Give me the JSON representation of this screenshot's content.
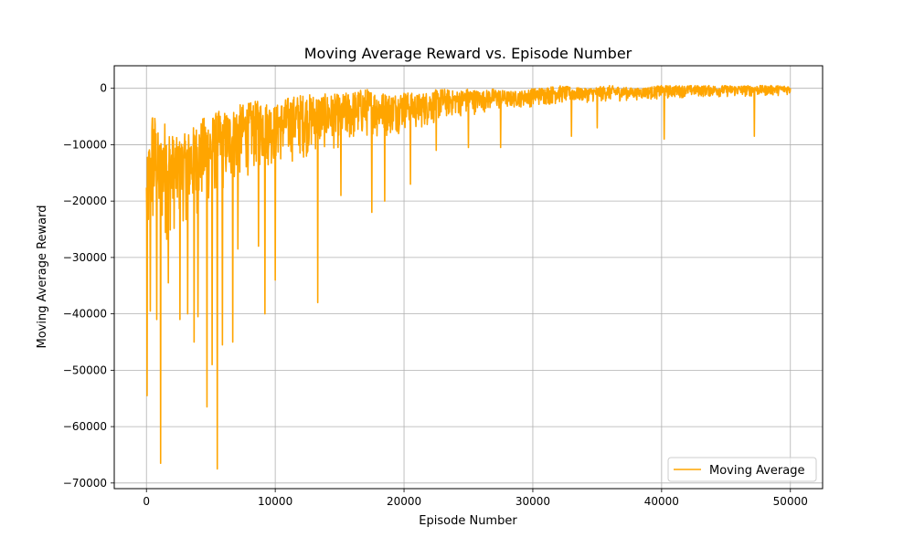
{
  "chart_data": {
    "type": "line",
    "title": "Moving Average Reward vs. Episode Number",
    "xlabel": "Episode Number",
    "ylabel": "Moving Average Reward",
    "xlim": [
      -2500,
      52500
    ],
    "ylim": [
      -71000,
      4000
    ],
    "xticks": [
      0,
      10000,
      20000,
      30000,
      40000,
      50000
    ],
    "yticks": [
      0,
      -10000,
      -20000,
      -30000,
      -40000,
      -50000,
      -60000,
      -70000
    ],
    "xtick_labels": [
      "0",
      "10000",
      "20000",
      "30000",
      "40000",
      "50000"
    ],
    "ytick_labels": [
      "0",
      "−10000",
      "−20000",
      "−30000",
      "−40000",
      "−50000",
      "−60000",
      "−70000"
    ],
    "grid": true,
    "legend_position": "bottom-right",
    "series": [
      {
        "name": "Moving Average",
        "color": "#ffa500",
        "envelope": {
          "x": [
            0,
            500,
            1000,
            1500,
            2000,
            2500,
            3000,
            3500,
            4000,
            4500,
            5000,
            5500,
            6000,
            6500,
            7000,
            8000,
            9000,
            10000,
            11000,
            12000,
            13000,
            14000,
            15000,
            16000,
            17000,
            18000,
            19000,
            20000,
            21000,
            22000,
            23000,
            24000,
            25000,
            26000,
            27000,
            28000,
            29000,
            30000,
            32000,
            34000,
            36000,
            38000,
            40000,
            42000,
            44000,
            46000,
            48000,
            50000
          ],
          "upper": [
            -14000,
            -2000,
            -9000,
            -5000,
            -8000,
            -9000,
            -8000,
            -7000,
            -6000,
            -5000,
            -5000,
            -4000,
            -4000,
            -4000,
            -3000,
            -2500,
            -2000,
            -3000,
            -1500,
            -1000,
            -1000,
            -1000,
            -1000,
            -500,
            0,
            -500,
            -1000,
            -500,
            -1000,
            -500,
            0,
            -500,
            0,
            -500,
            0,
            -500,
            -500,
            0,
            500,
            0,
            500,
            0,
            500,
            500,
            500,
            500,
            500,
            500
          ],
          "lower": [
            -33000,
            -35000,
            -30000,
            -32000,
            -30000,
            -28000,
            -27000,
            -26000,
            -26000,
            -25000,
            -24000,
            -22000,
            -22000,
            -21000,
            -20000,
            -18000,
            -17000,
            -16000,
            -16000,
            -15000,
            -14000,
            -13000,
            -13000,
            -12000,
            -11000,
            -11000,
            -10000,
            -9000,
            -9000,
            -8000,
            -7000,
            -6000,
            -6000,
            -5000,
            -5000,
            -4500,
            -4000,
            -4000,
            -3500,
            -3000,
            -3000,
            -2500,
            -2500,
            -2000,
            -2000,
            -2000,
            -1800,
            -1500
          ]
        },
        "spikes": [
          {
            "x": 50,
            "y": -54500
          },
          {
            "x": 300,
            "y": -39500
          },
          {
            "x": 800,
            "y": -41000
          },
          {
            "x": 1100,
            "y": -66500
          },
          {
            "x": 1700,
            "y": -34500
          },
          {
            "x": 2600,
            "y": -41000
          },
          {
            "x": 3200,
            "y": -40000
          },
          {
            "x": 3700,
            "y": -45000
          },
          {
            "x": 4000,
            "y": -40500
          },
          {
            "x": 4700,
            "y": -56500
          },
          {
            "x": 5100,
            "y": -49000
          },
          {
            "x": 5500,
            "y": -67500
          },
          {
            "x": 5900,
            "y": -45500
          },
          {
            "x": 6700,
            "y": -45000
          },
          {
            "x": 7100,
            "y": -28500
          },
          {
            "x": 8700,
            "y": -28000
          },
          {
            "x": 9200,
            "y": -40000
          },
          {
            "x": 10000,
            "y": -34000
          },
          {
            "x": 13300,
            "y": -38000
          },
          {
            "x": 15100,
            "y": -19000
          },
          {
            "x": 17500,
            "y": -22000
          },
          {
            "x": 18500,
            "y": -20000
          },
          {
            "x": 20500,
            "y": -17000
          },
          {
            "x": 22500,
            "y": -11000
          },
          {
            "x": 25000,
            "y": -10500
          },
          {
            "x": 27500,
            "y": -10500
          },
          {
            "x": 33000,
            "y": -8500
          },
          {
            "x": 35000,
            "y": -7000
          },
          {
            "x": 40200,
            "y": -9000
          },
          {
            "x": 47200,
            "y": -8500
          }
        ]
      }
    ]
  }
}
